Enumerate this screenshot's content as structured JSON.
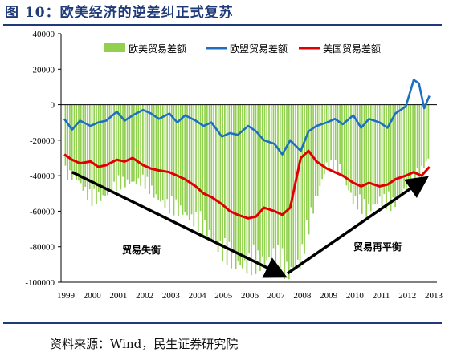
{
  "figure": {
    "title": "图 10：欧美经济的逆差纠正式复苏",
    "source": "资料来源：Wind，民生证券研究院"
  },
  "chart_data": {
    "type": "bar",
    "ylim": [
      -100000,
      40000
    ],
    "yticks": [
      "40000",
      "20000",
      "0",
      "-20000",
      "-40000",
      "-60000",
      "-80000",
      "-100000"
    ],
    "ytick_values": [
      40000,
      20000,
      0,
      -20000,
      -40000,
      -60000,
      -80000,
      -100000
    ],
    "xticks": [
      "1999",
      "2000",
      "2001",
      "2002",
      "2003",
      "2004",
      "2005",
      "2006",
      "2007",
      "2008",
      "2009",
      "2010",
      "2011",
      "2012",
      "2013"
    ],
    "xlim": [
      1999.0,
      2013.0
    ],
    "grid": false,
    "legend_position": "top",
    "colors": {
      "combined": "#92d050",
      "eu": "#1f6fc0",
      "us": "#e00000",
      "arrow": "#000000",
      "frame": "#1f3a78"
    },
    "series": [
      {
        "name": "欧美贸易差额",
        "kind": "bar",
        "x": [
          1999.0,
          1999.5,
          2000.0,
          2000.5,
          2001.0,
          2001.5,
          2002.0,
          2002.5,
          2003.0,
          2003.5,
          2004.0,
          2004.5,
          2005.0,
          2005.5,
          2006.0,
          2006.5,
          2007.0,
          2007.5,
          2008.0,
          2008.5,
          2009.0,
          2009.5,
          2010.0,
          2010.5,
          2011.0,
          2011.5,
          2012.0,
          2012.5,
          2012.9
        ],
        "values": [
          -38000,
          -40000,
          -52000,
          -50000,
          -44000,
          -42000,
          -42000,
          -50000,
          -56000,
          -58000,
          -64000,
          -70000,
          -80000,
          -86000,
          -88000,
          -86000,
          -82000,
          -92000,
          -85000,
          -55000,
          -32000,
          -35000,
          -52000,
          -58000,
          -52000,
          -55000,
          -45000,
          -38000,
          -28000
        ]
      },
      {
        "name": "欧盟贸易差额",
        "kind": "line",
        "x": [
          1999.0,
          1999.3,
          1999.6,
          2000.0,
          2000.3,
          2000.6,
          2001.0,
          2001.3,
          2001.6,
          2002.0,
          2002.3,
          2002.6,
          2003.0,
          2003.3,
          2003.6,
          2004.0,
          2004.3,
          2004.6,
          2005.0,
          2005.3,
          2005.6,
          2006.0,
          2006.3,
          2006.6,
          2007.0,
          2007.3,
          2007.6,
          2008.0,
          2008.3,
          2008.6,
          2009.0,
          2009.3,
          2009.6,
          2010.0,
          2010.3,
          2010.6,
          2011.0,
          2011.3,
          2011.6,
          2012.0,
          2012.3,
          2012.5,
          2012.7,
          2012.9
        ],
        "values": [
          -8000,
          -14000,
          -9000,
          -12000,
          -10000,
          -9000,
          -4000,
          -9000,
          -6000,
          -3000,
          -5000,
          -8000,
          -5000,
          -10000,
          -6000,
          -9000,
          -12000,
          -10000,
          -18000,
          -16000,
          -17000,
          -12000,
          -15000,
          -20000,
          -22000,
          -28000,
          -20000,
          -26000,
          -15000,
          -12000,
          -10000,
          -8000,
          -11000,
          -6000,
          -13000,
          -8000,
          -10000,
          -13000,
          -5000,
          -1000,
          14000,
          12000,
          -2000,
          5000
        ]
      },
      {
        "name": "美国贸易差额",
        "kind": "line",
        "x": [
          1999.0,
          1999.3,
          1999.6,
          2000.0,
          2000.3,
          2000.6,
          2001.0,
          2001.3,
          2001.6,
          2002.0,
          2002.3,
          2002.6,
          2003.0,
          2003.3,
          2003.6,
          2004.0,
          2004.3,
          2004.6,
          2005.0,
          2005.3,
          2005.6,
          2006.0,
          2006.3,
          2006.6,
          2007.0,
          2007.3,
          2007.6,
          2008.0,
          2008.3,
          2008.6,
          2009.0,
          2009.3,
          2009.6,
          2010.0,
          2010.3,
          2010.6,
          2011.0,
          2011.3,
          2011.6,
          2012.0,
          2012.3,
          2012.6,
          2012.9
        ],
        "values": [
          -28000,
          -31000,
          -33000,
          -32000,
          -35000,
          -34000,
          -31000,
          -32000,
          -30000,
          -34000,
          -36000,
          -37000,
          -38000,
          -40000,
          -42000,
          -46000,
          -50000,
          -52000,
          -56000,
          -60000,
          -62000,
          -64000,
          -63000,
          -58000,
          -60000,
          -62000,
          -58000,
          -30000,
          -26000,
          -32000,
          -36000,
          -38000,
          -40000,
          -44000,
          -46000,
          -44000,
          -46000,
          -45000,
          -42000,
          -40000,
          -38000,
          -40000,
          -35000
        ]
      }
    ],
    "annotations": [
      {
        "text": "贸易失衡",
        "from": [
          1999.3,
          -38000
        ],
        "to": [
          2007.3,
          -96000
        ]
      },
      {
        "text": "贸易再平衡",
        "from": [
          2007.5,
          -95000
        ],
        "to": [
          2012.7,
          -42000
        ]
      }
    ]
  }
}
